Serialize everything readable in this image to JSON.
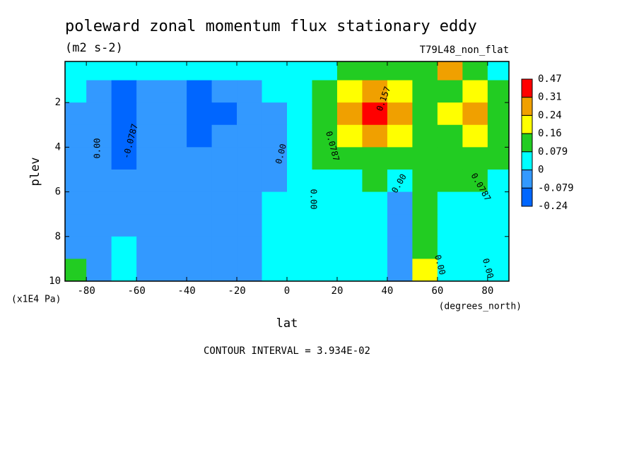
{
  "chart_data": {
    "type": "contour",
    "title": "poleward zonal momentum flux stationary eddy",
    "subtitle": "(m2 s-2)",
    "dataset": "T79L48_non_flat",
    "xlabel": "lat",
    "xunits": "(degrees_north)",
    "ylabel": "plev",
    "yunits": "(x1E4 Pa)",
    "footer": "CONTOUR INTERVAL = 3.934E-02",
    "xlim": [
      -88.5,
      88.5
    ],
    "ylim": [
      0.16,
      10
    ],
    "xticks": [
      -80,
      -60,
      -40,
      -20,
      0,
      20,
      40,
      60,
      80
    ],
    "yticks": [
      2,
      4,
      6,
      8,
      10
    ],
    "levels": [
      0.47,
      0.31,
      0.24,
      0.16,
      0.079,
      0,
      -0.079,
      -0.24
    ],
    "colors": [
      "#ff0000",
      "#f0a000",
      "#ffff00",
      "#22cc22",
      "#00ffff",
      "#3399ff",
      "#0066ff"
    ],
    "x": [
      -85,
      -75,
      -65,
      -55,
      -45,
      -35,
      -25,
      -15,
      -5,
      5,
      15,
      25,
      35,
      45,
      55,
      65,
      75,
      85
    ],
    "y": [
      0.5,
      1.5,
      2.5,
      3.5,
      4.5,
      5.5,
      6.5,
      7.5,
      8.5,
      9.5
    ],
    "z": [
      [
        0.04,
        0.04,
        0.04,
        0.04,
        0.04,
        0.04,
        0.04,
        0.04,
        0.04,
        0.04,
        0.04,
        0.12,
        0.12,
        0.12,
        0.12,
        0.27,
        0.12,
        0.04
      ],
      [
        0.04,
        -0.04,
        -0.12,
        -0.04,
        -0.04,
        -0.12,
        -0.04,
        -0.04,
        0.04,
        0.04,
        0.12,
        0.2,
        0.27,
        0.2,
        0.12,
        0.12,
        0.2,
        0.12
      ],
      [
        -0.04,
        -0.04,
        -0.12,
        -0.04,
        -0.04,
        -0.12,
        -0.12,
        -0.04,
        -0.04,
        0.04,
        0.12,
        0.27,
        0.4,
        0.27,
        0.12,
        0.2,
        0.27,
        0.12
      ],
      [
        -0.04,
        -0.04,
        -0.12,
        -0.04,
        -0.04,
        -0.12,
        -0.04,
        -0.04,
        -0.04,
        0.04,
        0.12,
        0.2,
        0.27,
        0.2,
        0.12,
        0.12,
        0.2,
        0.12
      ],
      [
        -0.04,
        -0.04,
        -0.12,
        -0.04,
        -0.04,
        -0.04,
        -0.04,
        -0.04,
        -0.04,
        0.04,
        0.12,
        0.12,
        0.12,
        0.12,
        0.12,
        0.12,
        0.12,
        0.12
      ],
      [
        -0.04,
        -0.04,
        -0.04,
        -0.04,
        -0.04,
        -0.04,
        -0.04,
        -0.04,
        -0.04,
        0.04,
        0.04,
        0.04,
        0.12,
        0.04,
        0.12,
        0.12,
        0.12,
        0.04
      ],
      [
        -0.04,
        -0.04,
        -0.04,
        -0.04,
        -0.04,
        -0.04,
        -0.04,
        -0.04,
        0.04,
        0.04,
        0.04,
        0.04,
        0.04,
        -0.04,
        0.12,
        0.04,
        0.04,
        0.04
      ],
      [
        -0.04,
        -0.04,
        -0.04,
        -0.04,
        -0.04,
        -0.04,
        -0.04,
        -0.04,
        0.04,
        0.04,
        0.04,
        0.04,
        0.04,
        -0.04,
        0.12,
        0.04,
        0.04,
        0.04
      ],
      [
        -0.04,
        -0.04,
        0.04,
        -0.04,
        -0.04,
        -0.04,
        -0.04,
        -0.04,
        0.04,
        0.04,
        0.04,
        0.04,
        0.04,
        -0.04,
        0.12,
        0.04,
        0.04,
        0.04
      ],
      [
        0.12,
        -0.04,
        0.04,
        -0.04,
        -0.04,
        -0.04,
        -0.04,
        -0.04,
        0.04,
        0.04,
        0.04,
        0.04,
        0.04,
        -0.04,
        0.2,
        0.04,
        0.04,
        0.04
      ]
    ],
    "contour_labels": [
      "0.00",
      "-0.0787",
      "0.00",
      "0.00",
      "0.0787",
      "0.157",
      "0.00",
      "0.0787",
      "0.00",
      "0.00"
    ]
  }
}
